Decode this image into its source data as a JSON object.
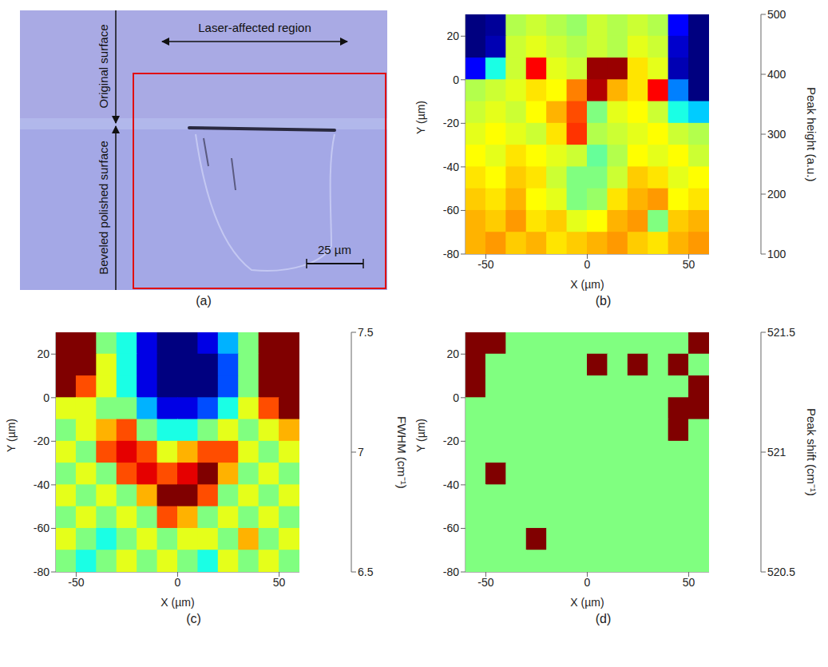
{
  "image_panel": {
    "caption": "(a)",
    "labels": {
      "top": "Laser-affected region",
      "left_upper": "Original surface",
      "left_lower": "Beveled polished surface",
      "scale_bar": "25 µm"
    }
  },
  "chart_data": [
    {
      "type": "heatmap",
      "caption": "(b)",
      "x_label": "X (µm)",
      "y_label": "Y (µm)",
      "xlim": [
        -60,
        60
      ],
      "ylim": [
        -80,
        30
      ],
      "xticks": [
        -50,
        0,
        50
      ],
      "yticks": [
        -80,
        -60,
        -40,
        -20,
        0,
        20
      ],
      "x": [
        -55,
        -45,
        -35,
        -25,
        -15,
        -5,
        5,
        15,
        25,
        35,
        45,
        55
      ],
      "y": [
        25,
        15,
        5,
        -5,
        -15,
        -25,
        -35,
        -45,
        -55,
        -65,
        -75
      ],
      "cells": [
        [
          100,
          110,
          320,
          330,
          320,
          310,
          330,
          320,
          330,
          320,
          150,
          100
        ],
        [
          100,
          120,
          330,
          340,
          330,
          320,
          330,
          320,
          340,
          330,
          130,
          100
        ],
        [
          150,
          260,
          330,
          450,
          340,
          330,
          490,
          490,
          360,
          340,
          120,
          100
        ],
        [
          320,
          330,
          340,
          360,
          350,
          400,
          480,
          380,
          360,
          450,
          200,
          100
        ],
        [
          330,
          340,
          330,
          350,
          380,
          420,
          300,
          340,
          350,
          330,
          260,
          230
        ],
        [
          340,
          350,
          340,
          330,
          360,
          430,
          320,
          330,
          340,
          350,
          330,
          320
        ],
        [
          350,
          340,
          360,
          350,
          340,
          330,
          290,
          320,
          350,
          340,
          350,
          330
        ],
        [
          360,
          350,
          370,
          360,
          330,
          300,
          300,
          330,
          370,
          360,
          340,
          350
        ],
        [
          370,
          360,
          380,
          350,
          340,
          300,
          310,
          360,
          380,
          390,
          350,
          360
        ],
        [
          380,
          370,
          390,
          360,
          370,
          340,
          350,
          380,
          390,
          300,
          370,
          380
        ],
        [
          380,
          390,
          370,
          380,
          360,
          370,
          380,
          390,
          370,
          360,
          380,
          390
        ]
      ],
      "colorbar": {
        "range": [
          100,
          500
        ],
        "ticks": [
          100,
          200,
          300,
          400,
          500
        ],
        "label": "Peak height (a.u.)"
      }
    },
    {
      "type": "heatmap",
      "caption": "(c)",
      "x_label": "X (µm)",
      "y_label": "Y (µm)",
      "xlim": [
        -60,
        60
      ],
      "ylim": [
        -80,
        30
      ],
      "xticks": [
        -50,
        0,
        50
      ],
      "yticks": [
        -80,
        -60,
        -40,
        -20,
        0,
        20
      ],
      "x": [
        -55,
        -45,
        -35,
        -25,
        -15,
        -5,
        5,
        15,
        25,
        35,
        45,
        55
      ],
      "y": [
        25,
        15,
        5,
        -5,
        -15,
        -25,
        -35,
        -45,
        -55,
        -65,
        -75
      ],
      "cells": [
        [
          7.5,
          7.5,
          7.0,
          6.9,
          6.6,
          6.5,
          6.5,
          6.6,
          6.8,
          7.0,
          7.5,
          7.5
        ],
        [
          7.5,
          7.5,
          7.1,
          6.9,
          6.6,
          6.5,
          6.5,
          6.5,
          6.7,
          7.0,
          7.5,
          7.5
        ],
        [
          7.5,
          7.3,
          7.1,
          6.9,
          6.6,
          6.5,
          6.5,
          6.5,
          6.7,
          7.0,
          7.5,
          7.5
        ],
        [
          7.1,
          7.1,
          7.0,
          7.0,
          6.8,
          6.6,
          6.6,
          6.7,
          6.9,
          7.1,
          7.3,
          7.5
        ],
        [
          7.0,
          7.1,
          7.2,
          7.3,
          7.0,
          6.9,
          6.9,
          7.0,
          7.1,
          7.0,
          7.1,
          7.2
        ],
        [
          7.1,
          7.0,
          7.3,
          7.4,
          7.3,
          7.1,
          7.2,
          7.3,
          7.3,
          7.1,
          7.0,
          7.1
        ],
        [
          7.0,
          7.1,
          7.0,
          7.3,
          7.4,
          7.3,
          7.4,
          7.5,
          7.2,
          7.0,
          7.1,
          7.0
        ],
        [
          7.1,
          7.0,
          7.1,
          7.0,
          7.2,
          7.5,
          7.5,
          7.3,
          7.0,
          7.1,
          7.0,
          7.1
        ],
        [
          7.0,
          7.1,
          7.0,
          7.1,
          7.0,
          7.3,
          7.2,
          7.0,
          7.1,
          7.0,
          7.1,
          7.0
        ],
        [
          7.1,
          7.0,
          6.9,
          7.0,
          7.1,
          7.0,
          7.1,
          7.1,
          7.0,
          7.2,
          7.0,
          7.1
        ],
        [
          7.0,
          6.9,
          7.0,
          7.1,
          7.0,
          7.1,
          7.0,
          6.9,
          7.1,
          7.0,
          7.1,
          7.0
        ]
      ],
      "colorbar": {
        "range": [
          6.5,
          7.5
        ],
        "ticks": [
          6.5,
          7,
          7.5
        ],
        "label": "FWHM (cm⁻¹)"
      }
    },
    {
      "type": "heatmap",
      "caption": "(d)",
      "x_label": "X (µm)",
      "y_label": "Y (µm)",
      "xlim": [
        -60,
        60
      ],
      "ylim": [
        -80,
        30
      ],
      "xticks": [
        -50,
        0,
        50
      ],
      "yticks": [
        -80,
        -60,
        -40,
        -20,
        0,
        20
      ],
      "x": [
        -55,
        -45,
        -35,
        -25,
        -15,
        -5,
        5,
        15,
        25,
        35,
        45,
        55
      ],
      "y": [
        25,
        15,
        5,
        -5,
        -15,
        -25,
        -35,
        -45,
        -55,
        -65,
        -75
      ],
      "cells": [
        [
          521.5,
          521.5,
          521,
          521,
          521,
          521,
          521,
          521,
          521,
          521,
          521,
          521.5
        ],
        [
          521.5,
          521,
          521,
          521,
          521,
          521,
          521.5,
          521,
          521.5,
          521,
          521.5,
          521
        ],
        [
          521.5,
          521,
          521,
          521,
          521,
          521,
          521,
          521,
          521,
          521,
          521,
          521.5
        ],
        [
          521,
          521,
          521,
          521,
          521,
          521,
          521,
          521,
          521,
          521,
          521.5,
          521.5
        ],
        [
          521,
          521,
          521,
          521,
          521,
          521,
          521,
          521,
          521,
          521,
          521.5,
          521
        ],
        [
          521,
          521,
          521,
          521,
          521,
          521,
          521,
          521,
          521,
          521,
          521,
          521
        ],
        [
          521,
          521.5,
          521,
          521,
          521,
          521,
          521,
          521,
          521,
          521,
          521,
          521
        ],
        [
          521,
          521,
          521,
          521,
          521,
          521,
          521,
          521,
          521,
          521,
          521,
          521
        ],
        [
          521,
          521,
          521,
          521,
          521,
          521,
          521,
          521,
          521,
          521,
          521,
          521
        ],
        [
          521,
          521,
          521,
          521.5,
          521,
          521,
          521,
          521,
          521,
          521,
          521,
          521
        ],
        [
          521,
          521,
          521,
          521,
          521,
          521,
          521,
          521,
          521,
          521,
          521,
          521
        ]
      ],
      "colorbar": {
        "range": [
          520.5,
          521.5
        ],
        "ticks": [
          520.5,
          521,
          521.5
        ],
        "label": "Peak shift (cm⁻¹)"
      }
    }
  ]
}
